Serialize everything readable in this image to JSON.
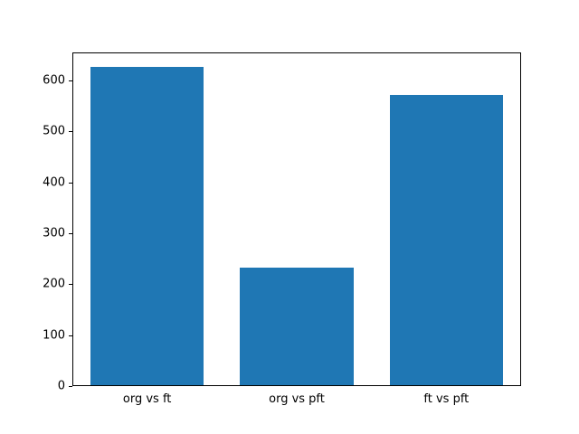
{
  "chart_data": {
    "type": "bar",
    "title": "",
    "xlabel": "",
    "ylabel": "",
    "categories": [
      "org vs ft",
      "org vs pft",
      "ft vs pft"
    ],
    "values": [
      625,
      230,
      570
    ],
    "ylim": [
      0,
      655
    ],
    "yticks": [
      0,
      100,
      200,
      300,
      400,
      500,
      600
    ],
    "bar_color": "#1f77b4",
    "axis_color": "#000000",
    "background_color": "#ffffff",
    "grid": false,
    "legend": "none"
  }
}
